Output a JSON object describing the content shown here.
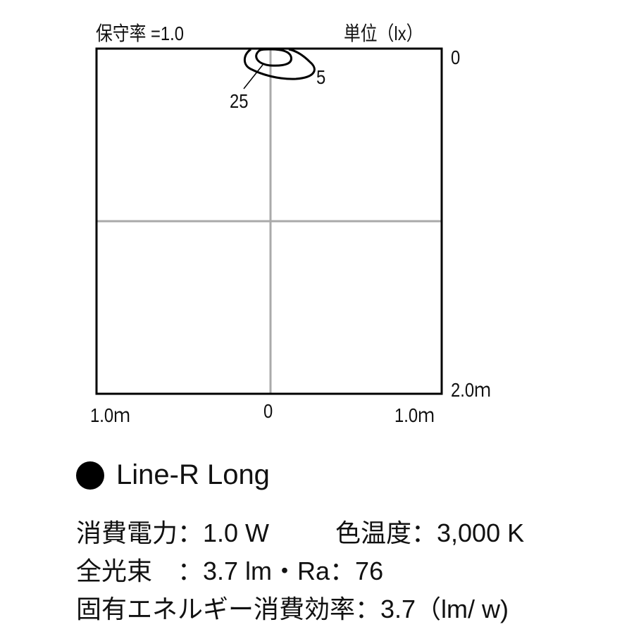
{
  "header": {
    "maintenance_factor": "保守率 =1.0",
    "unit": "単位（lx）"
  },
  "chart_data": {
    "type": "isolux-contour",
    "x_ticks": [
      "1.0ｍ",
      "0",
      "1.0ｍ"
    ],
    "y_ticks": [
      "0",
      "2.0ｍ"
    ],
    "xlim_m": [
      -1.0,
      1.0
    ],
    "ylim_m": [
      0,
      2.0
    ],
    "grid": true,
    "contours": [
      {
        "label": "5",
        "value": 5
      },
      {
        "label": "25",
        "value": 25
      }
    ]
  },
  "product": {
    "name": "Line-R Long",
    "line1_power": "消費電力：1.0 W",
    "line1_color_temp": "色温度：3,000 K",
    "line2": "全光束　：3.7 lm・Ra：76",
    "line3": "固有エネルギー消費効率：3.7（lm/ w)"
  },
  "colors": {
    "grid": "#aaaaaa",
    "line": "#000000"
  }
}
